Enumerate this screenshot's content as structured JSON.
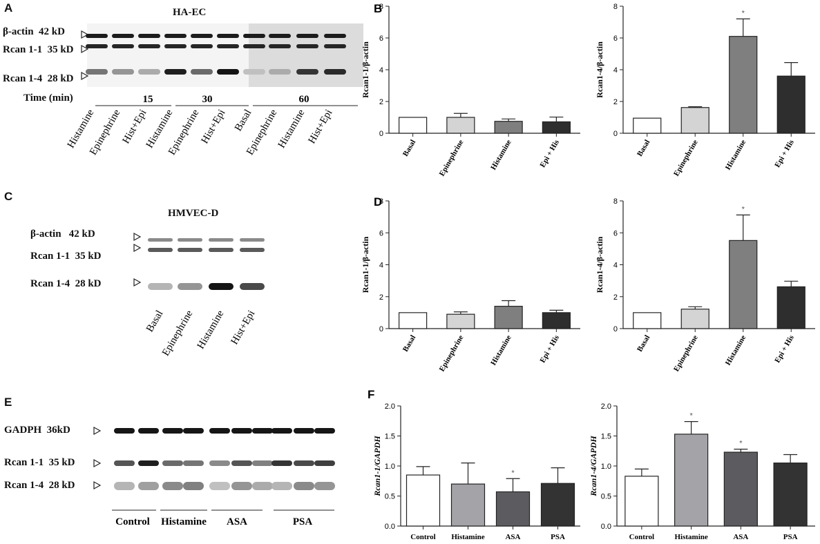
{
  "panelA": {
    "letter": "A",
    "title": "HA-EC",
    "rows": [
      "β-actin  42 kD",
      "Rcan 1-1  35 kD",
      "Rcan 1-4  28 kD"
    ],
    "time_label": "Time (min)",
    "time_groups": [
      "15",
      "30",
      "60"
    ],
    "lanes": [
      "Histamine",
      "Epinephrine",
      "Hist+Epi",
      "Histamine",
      "Epinephrine",
      "Hist+Epi",
      "Basal",
      "Epinephrine",
      "Histamine",
      "Hist+Epi"
    ],
    "rcan14_intensity": [
      0.55,
      0.4,
      0.3,
      0.95,
      0.6,
      1.0,
      0.2,
      0.3,
      0.85,
      0.9
    ]
  },
  "panelC": {
    "letter": "C",
    "title": "HMVEC-D",
    "rows": [
      "β-actin   42 kD",
      "Rcan 1-1  35 kD",
      "Rcan 1-4  28 kD"
    ],
    "lanes": [
      "Basal",
      "Epinephrine",
      "Histamine",
      "Hist+Epi"
    ],
    "rcan14_intensity": [
      0.25,
      0.4,
      1.0,
      0.75
    ]
  },
  "panelE": {
    "letter": "E",
    "rows": [
      "GADPH  36kD",
      "Rcan 1-1  35 kD",
      "Rcan 1-4  28 kD"
    ],
    "groups": [
      "Control",
      "Histamine",
      "ASA",
      "PSA"
    ]
  },
  "chart_data": [
    {
      "id": "B1",
      "letter": "B",
      "type": "bar",
      "ylabel": "Rcan1-1/β-actin",
      "ylim": [
        0,
        8
      ],
      "yticks": [
        "0",
        "2",
        "4",
        "6",
        "8"
      ],
      "categories": [
        "Basal",
        "Epinephrine",
        "Histamine",
        "Epi + His"
      ],
      "values": [
        1.0,
        1.0,
        0.75,
        0.72
      ],
      "errors": [
        0,
        0.25,
        0.15,
        0.3
      ],
      "annotations": [
        "",
        "",
        "",
        ""
      ]
    },
    {
      "id": "B2",
      "letter": "",
      "type": "bar",
      "ylabel": "Rcan1-4/β-actin",
      "ylim": [
        0,
        8
      ],
      "yticks": [
        "0",
        "2",
        "4",
        "6",
        "8"
      ],
      "categories": [
        "Basal",
        "Epinephrine",
        "Histamine",
        "Epi + His"
      ],
      "values": [
        0.95,
        1.62,
        6.1,
        3.6
      ],
      "errors": [
        0,
        0.05,
        1.1,
        0.85
      ],
      "annotations": [
        "",
        "",
        "*",
        ""
      ]
    },
    {
      "id": "D1",
      "letter": "D",
      "type": "bar",
      "ylabel": "Rcan1-1/β-actin",
      "ylim": [
        0,
        8
      ],
      "yticks": [
        "0",
        "2",
        "4",
        "6",
        "8"
      ],
      "categories": [
        "Basal",
        "Epinephrine",
        "Histamine",
        "Epi + His"
      ],
      "values": [
        1.0,
        0.9,
        1.4,
        1.0
      ],
      "errors": [
        0,
        0.15,
        0.35,
        0.15
      ],
      "annotations": [
        "",
        "",
        "",
        ""
      ]
    },
    {
      "id": "D2",
      "letter": "",
      "type": "bar",
      "ylabel": "Rcan1-4/β-actin",
      "ylim": [
        0,
        8
      ],
      "yticks": [
        "0",
        "2",
        "4",
        "6",
        "8"
      ],
      "categories": [
        "Basal",
        "Epinephrine",
        "Histamine",
        "Epi + His"
      ],
      "values": [
        1.0,
        1.22,
        5.52,
        2.62
      ],
      "errors": [
        0,
        0.15,
        1.6,
        0.35
      ],
      "annotations": [
        "",
        "",
        "*",
        ""
      ]
    },
    {
      "id": "F1",
      "letter": "F",
      "type": "bar",
      "ylabel": "Rcan1-1/GAPDH",
      "ylim": [
        0,
        2.0
      ],
      "yticks": [
        "0.0",
        "0.5",
        "1.0",
        "1.5",
        "2.0"
      ],
      "categories": [
        "Control",
        "Histamine",
        "ASA",
        "PSA"
      ],
      "values": [
        0.85,
        0.7,
        0.57,
        0.71
      ],
      "errors": [
        0.14,
        0.35,
        0.22,
        0.26
      ],
      "annotations": [
        "",
        "",
        "*",
        ""
      ]
    },
    {
      "id": "F2",
      "letter": "",
      "type": "bar",
      "ylabel": "Rcan1-4/GAPDH",
      "ylim": [
        0,
        2.0
      ],
      "yticks": [
        "0.0",
        "0.5",
        "1.0",
        "1.5",
        "2.0"
      ],
      "categories": [
        "Control",
        "Histamine",
        "ASA",
        "PSA"
      ],
      "values": [
        0.83,
        1.53,
        1.23,
        1.05
      ],
      "errors": [
        0.12,
        0.21,
        0.05,
        0.14
      ],
      "annotations": [
        "",
        "*",
        "*",
        ""
      ]
    }
  ],
  "colors": {
    "bars_B_D": [
      "#ffffff",
      "#d4d4d4",
      "#7f7f7f",
      "#2e2e2e"
    ],
    "bars_F": [
      "#ffffff",
      "#a3a3a8",
      "#5c5c60",
      "#333333"
    ],
    "band": "#1a1a1a",
    "membrane": "#f3f3f3"
  }
}
